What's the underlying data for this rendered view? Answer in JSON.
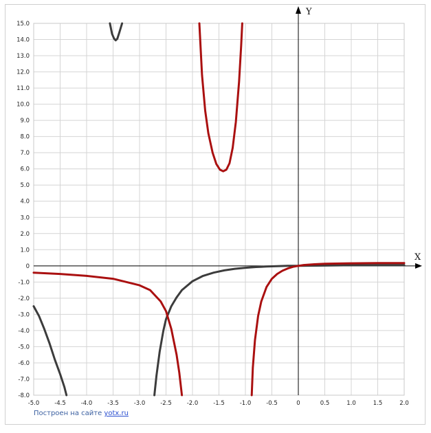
{
  "chart_data": {
    "type": "line",
    "title": "",
    "xlabel": "X",
    "ylabel": "Y",
    "xlim": [
      -5.0,
      2.0
    ],
    "ylim": [
      -8.0,
      15.0
    ],
    "grid": true,
    "legend": "none",
    "x_ticks": [
      "-5.0",
      "-4.5",
      "-4.0",
      "-3.5",
      "-3.0",
      "-2.5",
      "-2.0",
      "-1.5",
      "-1.0",
      "-0.5",
      "0",
      "0.5",
      "1.0",
      "1.5",
      "2.0"
    ],
    "y_ticks": [
      "15.0",
      "14.0",
      "13.0",
      "12.0",
      "11.0",
      "10.0",
      "9.0",
      "8.0",
      "7.0",
      "6.0",
      "5.0",
      "4.0",
      "3.0",
      "2.0",
      "1.0",
      "0",
      "-1.0",
      "-2.0",
      "-3.0",
      "-4.0",
      "-5.0",
      "-6.0",
      "-7.0",
      "-8.0"
    ],
    "series": [
      {
        "color": "#3c3c3c",
        "segments": [
          [
            [
              -3.56,
              15.0
            ],
            [
              -3.52,
              14.35
            ],
            [
              -3.48,
              14.05
            ],
            [
              -3.45,
              13.95
            ],
            [
              -3.42,
              14.05
            ],
            [
              -3.38,
              14.45
            ],
            [
              -3.33,
              15.0
            ]
          ],
          [
            [
              -5.0,
              -2.5
            ],
            [
              -4.9,
              -3.1
            ],
            [
              -4.8,
              -3.9
            ],
            [
              -4.7,
              -4.8
            ],
            [
              -4.6,
              -5.8
            ],
            [
              -4.5,
              -6.7
            ],
            [
              -4.42,
              -7.5
            ],
            [
              -4.38,
              -8.0
            ]
          ],
          [
            [
              -2.72,
              -8.0
            ],
            [
              -2.68,
              -6.8
            ],
            [
              -2.62,
              -5.3
            ],
            [
              -2.55,
              -4.0
            ],
            [
              -2.5,
              -3.3
            ],
            [
              -2.4,
              -2.5
            ],
            [
              -2.3,
              -1.95
            ],
            [
              -2.2,
              -1.5
            ],
            [
              -2.0,
              -0.95
            ],
            [
              -1.8,
              -0.62
            ],
            [
              -1.6,
              -0.42
            ],
            [
              -1.4,
              -0.28
            ],
            [
              -1.2,
              -0.18
            ],
            [
              -1.0,
              -0.12
            ],
            [
              -0.8,
              -0.07
            ],
            [
              -0.6,
              -0.04
            ],
            [
              -0.4,
              -0.02
            ],
            [
              -0.2,
              0.0
            ],
            [
              0.0,
              0.0
            ],
            [
              0.5,
              0.02
            ],
            [
              1.0,
              0.04
            ],
            [
              1.5,
              0.05
            ],
            [
              2.0,
              0.05
            ]
          ]
        ]
      },
      {
        "color": "#aa1010",
        "segments": [
          [
            [
              -5.0,
              -0.42
            ],
            [
              -4.5,
              -0.5
            ],
            [
              -4.0,
              -0.62
            ],
            [
              -3.5,
              -0.8
            ],
            [
              -3.0,
              -1.2
            ],
            [
              -2.8,
              -1.5
            ],
            [
              -2.6,
              -2.2
            ],
            [
              -2.5,
              -2.8
            ],
            [
              -2.4,
              -3.9
            ],
            [
              -2.3,
              -5.5
            ],
            [
              -2.25,
              -6.6
            ],
            [
              -2.2,
              -8.0
            ]
          ],
          [
            [
              -1.87,
              15.0
            ],
            [
              -1.82,
              11.8
            ],
            [
              -1.76,
              9.6
            ],
            [
              -1.7,
              8.2
            ],
            [
              -1.62,
              7.0
            ],
            [
              -1.55,
              6.3
            ],
            [
              -1.48,
              5.95
            ],
            [
              -1.42,
              5.85
            ],
            [
              -1.36,
              5.95
            ],
            [
              -1.3,
              6.35
            ],
            [
              -1.24,
              7.3
            ],
            [
              -1.18,
              8.9
            ],
            [
              -1.12,
              11.4
            ],
            [
              -1.08,
              13.6
            ],
            [
              -1.06,
              15.0
            ]
          ],
          [
            [
              -0.88,
              -8.0
            ],
            [
              -0.86,
              -6.3
            ],
            [
              -0.82,
              -4.6
            ],
            [
              -0.76,
              -3.1
            ],
            [
              -0.7,
              -2.2
            ],
            [
              -0.6,
              -1.3
            ],
            [
              -0.5,
              -0.8
            ],
            [
              -0.4,
              -0.5
            ],
            [
              -0.3,
              -0.3
            ],
            [
              -0.2,
              -0.16
            ],
            [
              -0.1,
              -0.06
            ],
            [
              0.0,
              0.0
            ],
            [
              0.1,
              0.05
            ],
            [
              0.3,
              0.1
            ],
            [
              0.5,
              0.13
            ],
            [
              1.0,
              0.16
            ],
            [
              1.5,
              0.17
            ],
            [
              2.0,
              0.17
            ]
          ]
        ]
      }
    ]
  },
  "footer": {
    "credit_prefix": "Построен на сайте ",
    "credit_link": "yotx.ru"
  }
}
